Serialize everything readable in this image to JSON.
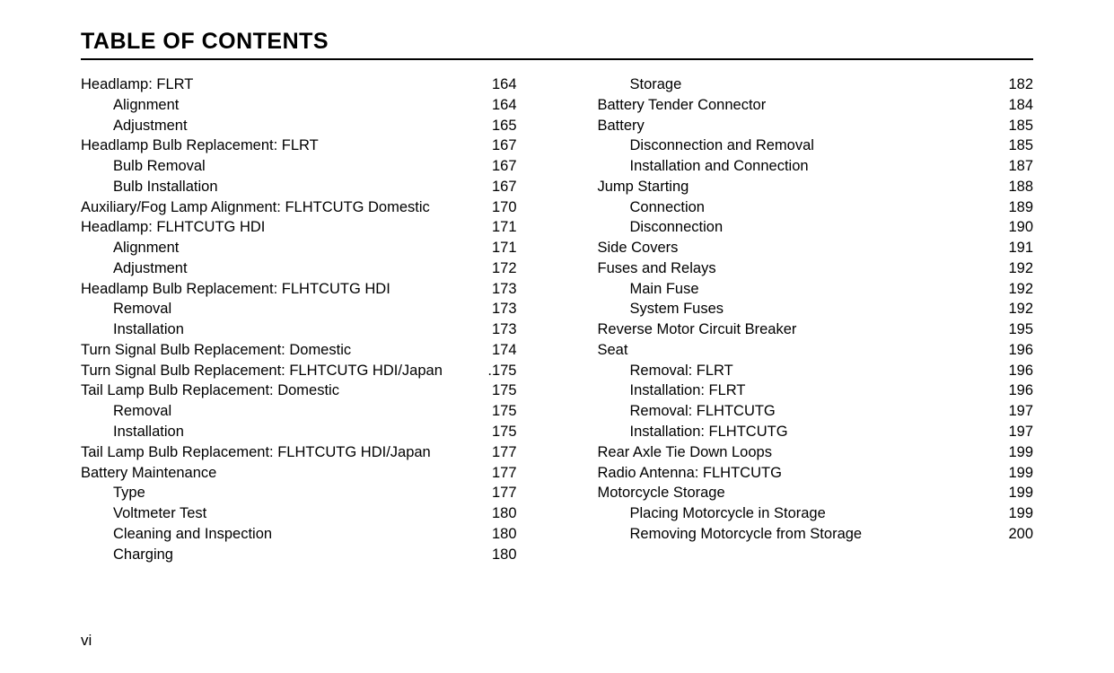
{
  "title": "TABLE OF CONTENTS",
  "page_label": "vi",
  "columns": [
    [
      {
        "label": "Headlamp: FLRT",
        "page": "164",
        "indent": 0
      },
      {
        "label": "Alignment",
        "page": "164",
        "indent": 1
      },
      {
        "label": "Adjustment",
        "page": "165",
        "indent": 1
      },
      {
        "label": "Headlamp Bulb Replacement: FLRT",
        "page": "167",
        "indent": 0
      },
      {
        "label": "Bulb Removal",
        "page": "167",
        "indent": 1
      },
      {
        "label": "Bulb Installation",
        "page": "167",
        "indent": 1
      },
      {
        "label": "Auxiliary/Fog Lamp Alignment: FLHTCUTG Domestic",
        "page": "170",
        "indent": 0
      },
      {
        "label": "Headlamp: FLHTCUTG HDI",
        "page": "171",
        "indent": 0
      },
      {
        "label": "Alignment",
        "page": "171",
        "indent": 1
      },
      {
        "label": "Adjustment",
        "page": "172",
        "indent": 1
      },
      {
        "label": "Headlamp Bulb Replacement: FLHTCUTG HDI",
        "page": "173",
        "indent": 0
      },
      {
        "label": "Removal",
        "page": "173",
        "indent": 1
      },
      {
        "label": "Installation",
        "page": "173",
        "indent": 1
      },
      {
        "label": "Turn Signal Bulb Replacement: Domestic",
        "page": "174",
        "indent": 0
      },
      {
        "label": "Turn Signal Bulb Replacement: FLHTCUTG HDI/Japan",
        "page": ".175",
        "indent": 0
      },
      {
        "label": "Tail Lamp Bulb Replacement: Domestic",
        "page": "175",
        "indent": 0
      },
      {
        "label": "Removal",
        "page": "175",
        "indent": 1
      },
      {
        "label": "Installation",
        "page": "175",
        "indent": 1
      },
      {
        "label": "Tail Lamp Bulb Replacement: FLHTCUTG HDI/Japan",
        "page": "177",
        "indent": 0
      },
      {
        "label": "Battery Maintenance",
        "page": "177",
        "indent": 0
      },
      {
        "label": "Type",
        "page": "177",
        "indent": 1
      },
      {
        "label": "Voltmeter Test",
        "page": "180",
        "indent": 1
      },
      {
        "label": "Cleaning and Inspection",
        "page": "180",
        "indent": 1
      },
      {
        "label": "Charging",
        "page": "180",
        "indent": 1
      }
    ],
    [
      {
        "label": "Storage",
        "page": "182",
        "indent": 1
      },
      {
        "label": "Battery Tender Connector",
        "page": "184",
        "indent": 0
      },
      {
        "label": "Battery",
        "page": "185",
        "indent": 0
      },
      {
        "label": "Disconnection and Removal",
        "page": "185",
        "indent": 1
      },
      {
        "label": "Installation and Connection",
        "page": "187",
        "indent": 1
      },
      {
        "label": "Jump Starting",
        "page": "188",
        "indent": 0
      },
      {
        "label": "Connection",
        "page": "189",
        "indent": 1
      },
      {
        "label": "Disconnection",
        "page": "190",
        "indent": 1
      },
      {
        "label": "Side Covers",
        "page": "191",
        "indent": 0
      },
      {
        "label": "Fuses and Relays",
        "page": "192",
        "indent": 0
      },
      {
        "label": "Main Fuse",
        "page": "192",
        "indent": 1
      },
      {
        "label": "System Fuses",
        "page": "192",
        "indent": 1
      },
      {
        "label": "Reverse Motor Circuit Breaker",
        "page": "195",
        "indent": 0
      },
      {
        "label": "Seat",
        "page": "196",
        "indent": 0
      },
      {
        "label": "Removal: FLRT",
        "page": "196",
        "indent": 1
      },
      {
        "label": "Installation: FLRT",
        "page": "196",
        "indent": 1
      },
      {
        "label": "Removal: FLHTCUTG",
        "page": "197",
        "indent": 1
      },
      {
        "label": "Installation: FLHTCUTG",
        "page": "197",
        "indent": 1
      },
      {
        "label": "Rear Axle Tie Down Loops",
        "page": "199",
        "indent": 0
      },
      {
        "label": "Radio Antenna: FLHTCUTG",
        "page": "199",
        "indent": 0
      },
      {
        "label": "Motorcycle Storage",
        "page": "199",
        "indent": 0
      },
      {
        "label": "Placing Motorcycle in Storage",
        "page": "199",
        "indent": 1
      },
      {
        "label": "Removing Motorcycle from Storage",
        "page": "200",
        "indent": 1
      }
    ]
  ]
}
